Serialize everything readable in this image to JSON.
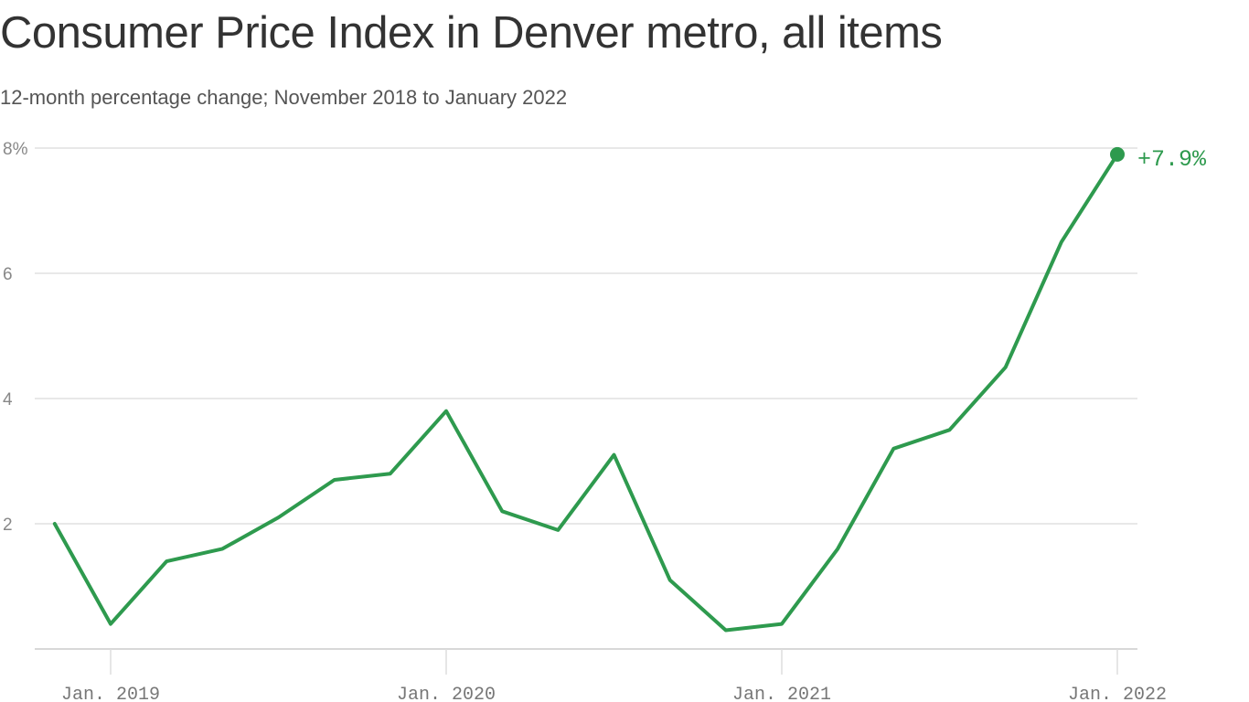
{
  "chart_data": {
    "type": "line",
    "title": "Consumer Price Index in Denver metro, all items",
    "subtitle": "12-month percentage change; November 2018 to January 2022",
    "x": [
      "2018-11",
      "2019-01",
      "2019-03",
      "2019-05",
      "2019-07",
      "2019-09",
      "2019-11",
      "2020-01",
      "2020-03",
      "2020-05",
      "2020-07",
      "2020-09",
      "2020-11",
      "2021-01",
      "2021-03",
      "2021-05",
      "2021-07",
      "2021-09",
      "2021-11",
      "2022-01"
    ],
    "series": [
      {
        "values": [
          2.0,
          0.4,
          1.4,
          1.6,
          2.1,
          2.7,
          2.8,
          3.8,
          2.2,
          1.9,
          3.1,
          1.1,
          0.3,
          0.4,
          1.6,
          3.2,
          3.5,
          4.5,
          6.5,
          7.9
        ],
        "color": "#2e9a4e"
      }
    ],
    "ylim": [
      0,
      8
    ],
    "yticks": [
      {
        "value": 2,
        "label": "2"
      },
      {
        "value": 4,
        "label": "4"
      },
      {
        "value": 6,
        "label": "6"
      },
      {
        "value": 8,
        "label": "8%"
      }
    ],
    "xticks": [
      {
        "date": "2019-01",
        "label": "Jan. 2019"
      },
      {
        "date": "2020-01",
        "label": "Jan. 2020"
      },
      {
        "date": "2021-01",
        "label": "Jan. 2021"
      },
      {
        "date": "2022-01",
        "label": "Jan. 2022"
      }
    ],
    "end_label": "+7.9%",
    "grid": true,
    "xlabel": "",
    "ylabel": ""
  }
}
